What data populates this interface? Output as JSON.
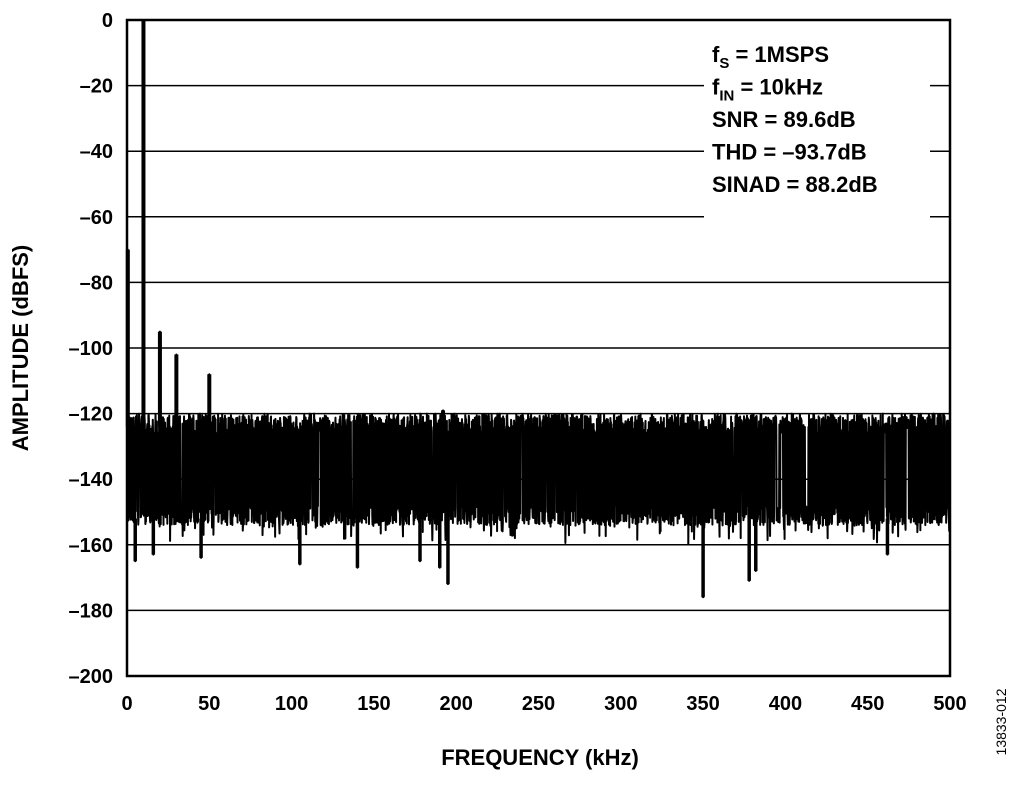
{
  "chart_data": {
    "type": "line",
    "title": "",
    "xlabel": "FREQUENCY (kHz)",
    "ylabel": "AMPLITUDE (dBFS)",
    "xlim": [
      0,
      500
    ],
    "ylim": [
      -200,
      0
    ],
    "x_ticks": [
      0,
      50,
      100,
      150,
      200,
      250,
      300,
      350,
      400,
      450,
      500
    ],
    "x_tick_labels": [
      "0",
      "50",
      "100",
      "150",
      "200",
      "250",
      "300",
      "350",
      "400",
      "450",
      "500"
    ],
    "y_ticks": [
      0,
      -20,
      -40,
      -60,
      -80,
      -100,
      -120,
      -140,
      -160,
      -180,
      -200
    ],
    "y_tick_labels": [
      "0",
      "–20",
      "–40",
      "–60",
      "–80",
      "–100",
      "–120",
      "–140",
      "–160",
      "–180",
      "–200"
    ],
    "grid": "horizontal",
    "legend": "none",
    "line_color": "#000000",
    "noise_floor": {
      "x_range_khz": [
        0,
        500
      ],
      "typical_top_dbfs": -124,
      "typical_bottom_dbfs": -152,
      "mean_dbfs": -138
    },
    "peaks": [
      {
        "x": 0.5,
        "y": -70
      },
      {
        "x": 10,
        "y": 0
      },
      {
        "x": 20,
        "y": -95
      },
      {
        "x": 30,
        "y": -102
      },
      {
        "x": 50,
        "y": -108
      },
      {
        "x": 192,
        "y": -119
      },
      {
        "x": 490,
        "y": -120
      }
    ],
    "dips": [
      {
        "x": 5,
        "y": -165
      },
      {
        "x": 16,
        "y": -163
      },
      {
        "x": 45,
        "y": -164
      },
      {
        "x": 105,
        "y": -166
      },
      {
        "x": 140,
        "y": -167
      },
      {
        "x": 178,
        "y": -165
      },
      {
        "x": 190,
        "y": -167
      },
      {
        "x": 195,
        "y": -172
      },
      {
        "x": 350,
        "y": -176
      },
      {
        "x": 378,
        "y": -171
      },
      {
        "x": 382,
        "y": -168
      },
      {
        "x": 462,
        "y": -163
      }
    ],
    "annotations": [
      {
        "main": "f",
        "sub": "S",
        "rest": " = 1MSPS"
      },
      {
        "main": "f",
        "sub": "IN",
        "rest": " = 10kHz"
      },
      {
        "main": "SNR = 89.6dB",
        "sub": "",
        "rest": ""
      },
      {
        "main": "THD = –93.7dB",
        "sub": "",
        "rest": ""
      },
      {
        "main": "SINAD = 88.2dB",
        "sub": "",
        "rest": ""
      }
    ]
  },
  "figure_id": "13833-012"
}
